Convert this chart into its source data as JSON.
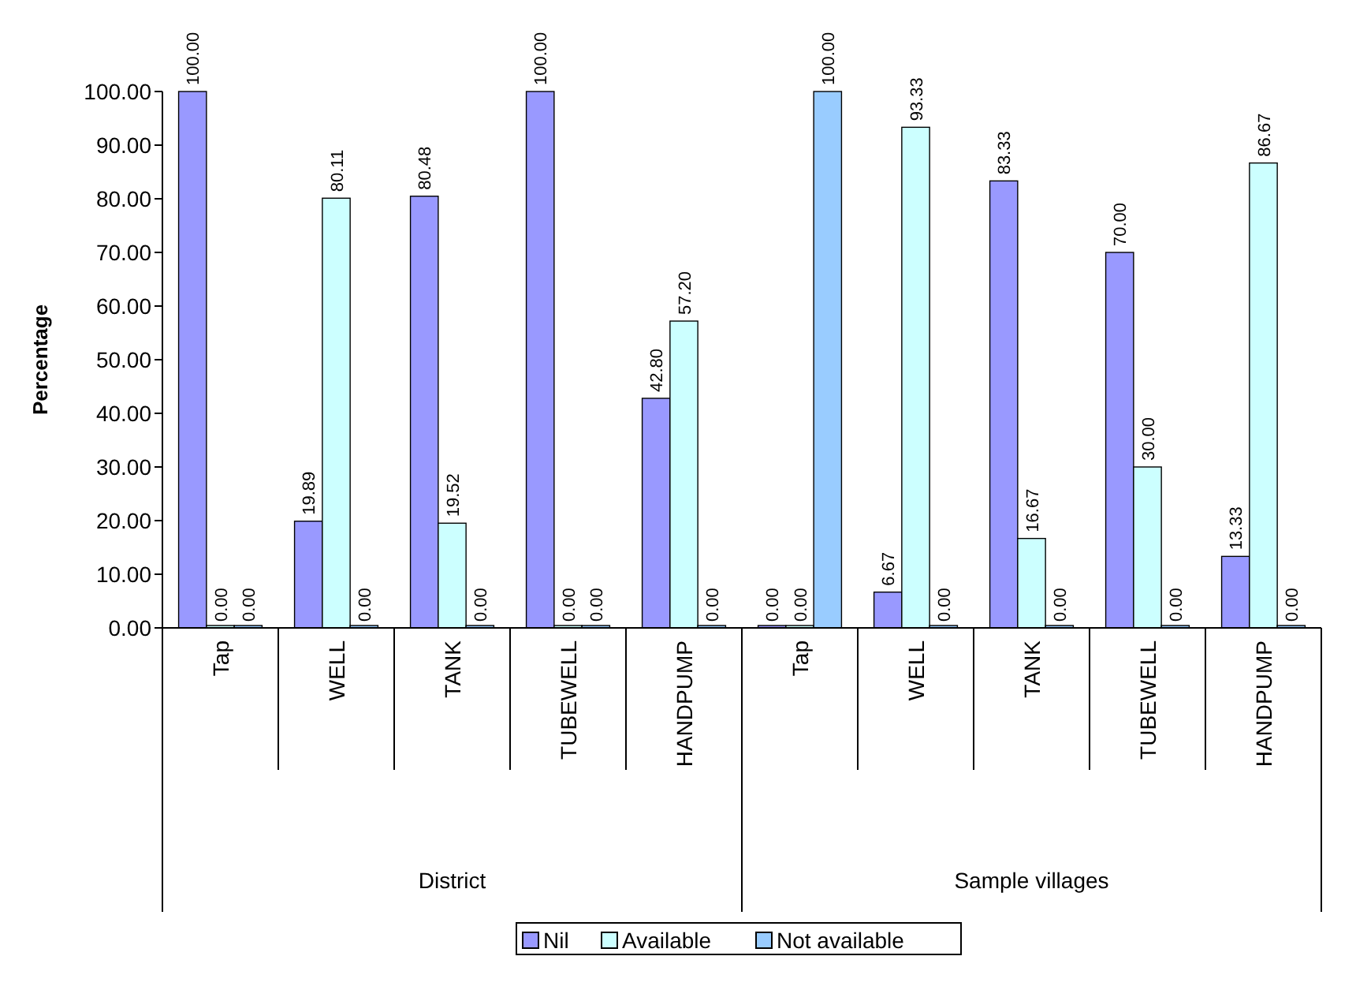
{
  "chart_data": {
    "type": "bar",
    "ylabel": "Percentage",
    "categories": [
      "Tap",
      "WELL",
      "TANK",
      "TUBEWELL",
      "HANDPUMP",
      "Tap",
      "WELL",
      "TANK",
      "TUBEWELL",
      "HANDPUMP"
    ],
    "annotations": [
      "District",
      "Sample villages"
    ],
    "series": [
      {
        "name": "Nil",
        "color": "#9999ff",
        "values": [
          100,
          19.89,
          80.48,
          100,
          42.8,
          0,
          6.67,
          83.33,
          70,
          13.33
        ],
        "value_labels": [
          "100.00",
          "19.89",
          "80.48",
          "100.00",
          "42.80",
          "0.00",
          "6.67",
          "83.33",
          "70.00",
          "13.33"
        ]
      },
      {
        "name": "Available",
        "color": "#ccffff",
        "values": [
          0,
          80.11,
          19.52,
          0,
          57.2,
          0,
          93.33,
          16.67,
          30,
          86.67
        ],
        "value_labels": [
          "0.00",
          "80.11",
          "19.52",
          "0.00",
          "57.20",
          "0.00",
          "93.33",
          "16.67",
          "30.00",
          "86.67"
        ]
      },
      {
        "name": "Not available",
        "color": "#99ccff",
        "values": [
          0,
          0,
          0,
          0,
          0,
          100,
          0,
          0,
          0,
          0
        ],
        "value_labels": [
          "0.00",
          "0.00",
          "0.00",
          "0.00",
          "0.00",
          "100.00",
          "0.00",
          "0.00",
          "0.00",
          "0.00"
        ]
      }
    ],
    "ylim": [
      0,
      100
    ],
    "yticks": [
      {
        "value": 0,
        "label": "0.00"
      },
      {
        "value": 10,
        "label": "10.00"
      },
      {
        "value": 20,
        "label": "20.00"
      },
      {
        "value": 30,
        "label": "30.00"
      },
      {
        "value": 40,
        "label": "40.00"
      },
      {
        "value": 50,
        "label": "50.00"
      },
      {
        "value": 60,
        "label": "60.00"
      },
      {
        "value": 70,
        "label": "70.00"
      },
      {
        "value": 80,
        "label": "80.00"
      },
      {
        "value": 90,
        "label": "90.00"
      },
      {
        "value": 100,
        "label": "100.00"
      }
    ],
    "grid": false,
    "legend": "bottom"
  }
}
